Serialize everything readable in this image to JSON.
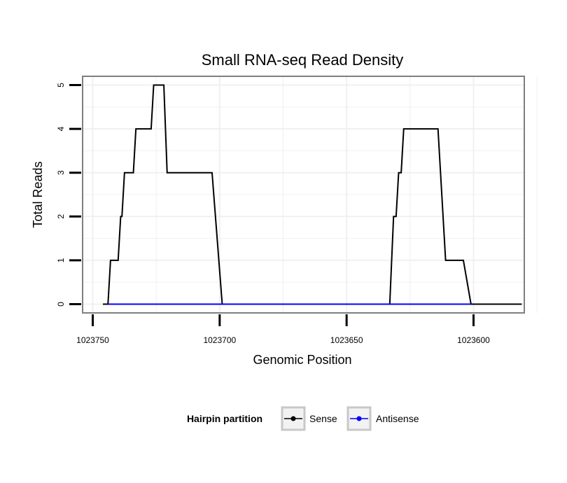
{
  "chart_data": {
    "type": "line",
    "title": "Small RNA-seq Read Density",
    "xlabel": "Genomic Position",
    "ylabel": "Total Reads",
    "x_reversed": true,
    "xlim": [
      1023754,
      1023580
    ],
    "ylim": [
      -0.2,
      5.2
    ],
    "x_ticks": [
      1023750,
      1023700,
      1023650,
      1023600
    ],
    "x_tick_labels": [
      "1023750",
      "1023700",
      "1023650",
      "1023600"
    ],
    "y_ticks": [
      0,
      1,
      2,
      3,
      4,
      5
    ],
    "y_tick_labels": [
      "0",
      "1",
      "2",
      "3",
      "4",
      "5"
    ],
    "grid": true,
    "legend": {
      "title": "Hairpin partition",
      "position": "bottom",
      "entries": [
        "Sense",
        "Antisense"
      ]
    },
    "series": [
      {
        "name": "Sense",
        "color": "#000000",
        "x": [
          1023746,
          1023744,
          1023743,
          1023740,
          1023739,
          1023738.5,
          1023737.5,
          1023734,
          1023733,
          1023727,
          1023726,
          1023724.7,
          1023723.3,
          1023722,
          1023720.7,
          1023703,
          1023699,
          1023633,
          1023631.5,
          1023630.5,
          1023629.5,
          1023628.5,
          1023627.5,
          1023614,
          1023613,
          1023611,
          1023604,
          1023601,
          1023581
        ],
        "y": [
          0,
          0,
          1,
          1,
          2,
          2,
          3,
          3,
          4,
          4,
          5,
          5,
          5,
          5,
          3,
          3,
          0,
          0,
          2,
          2,
          3,
          3,
          4,
          4,
          3,
          1,
          1,
          0,
          0
        ]
      },
      {
        "name": "Antisense",
        "color": "#0000ff",
        "x": [
          1023744,
          1023699,
          1023633,
          1023601
        ],
        "y": [
          0,
          0,
          0,
          0
        ]
      }
    ]
  }
}
